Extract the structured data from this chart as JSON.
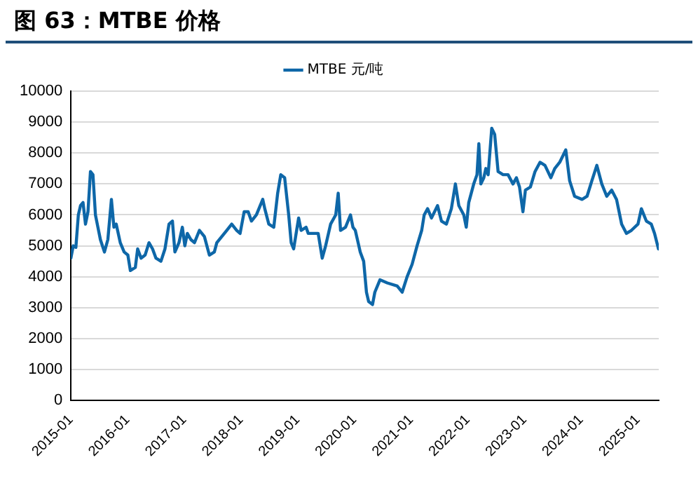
{
  "chart_data": {
    "type": "line",
    "title": "图 63：MTBE 价格",
    "xlim": [
      "2015-01-01",
      "2025-05-15"
    ],
    "xticks": [
      "2015-01",
      "2016-01",
      "2017-01",
      "2018-01",
      "2019-01",
      "2020-01",
      "2021-01",
      "2022-01",
      "2023-01",
      "2024-01",
      "2025-01"
    ],
    "ylim": [
      0,
      10000
    ],
    "yticks": [
      0,
      1000,
      2000,
      3000,
      4000,
      5000,
      6000,
      7000,
      8000,
      9000,
      10000
    ],
    "grid": "y",
    "legend": "top",
    "marker": "none",
    "line_style": "solid",
    "series": [
      {
        "name": "MTBE 元/吨",
        "color": "#0e67a8",
        "x": [
          "2015-01-01",
          "2015-01-16",
          "2015-02-02",
          "2015-02-18",
          "2015-03-04",
          "2015-03-20",
          "2015-04-05",
          "2015-04-21",
          "2015-05-07",
          "2015-05-23",
          "2015-06-08",
          "2015-06-24",
          "2015-07-10",
          "2015-08-05",
          "2015-08-27",
          "2015-09-19",
          "2015-10-05",
          "2015-10-20",
          "2015-11-15",
          "2015-12-10",
          "2016-01-03",
          "2016-01-19",
          "2016-02-20",
          "2016-03-06",
          "2016-03-28",
          "2016-04-23",
          "2016-05-18",
          "2016-06-10",
          "2016-07-02",
          "2016-08-03",
          "2016-08-29",
          "2016-09-24",
          "2016-10-16",
          "2016-11-01",
          "2016-11-27",
          "2016-12-19",
          "2017-01-04",
          "2017-01-20",
          "2017-02-12",
          "2017-03-07",
          "2017-04-08",
          "2017-05-10",
          "2017-06-11",
          "2017-07-13",
          "2017-07-29",
          "2017-08-30",
          "2017-10-01",
          "2017-11-02",
          "2017-12-04",
          "2017-12-26",
          "2018-01-21",
          "2018-02-16",
          "2018-03-09",
          "2018-04-10",
          "2018-05-21",
          "2018-06-03",
          "2018-06-29",
          "2018-07-31",
          "2018-08-25",
          "2018-09-14",
          "2018-10-09",
          "2018-11-04",
          "2018-11-20",
          "2018-12-06",
          "2018-12-22",
          "2019-01-07",
          "2019-01-23",
          "2019-02-24",
          "2019-03-10",
          "2019-04-11",
          "2019-05-13",
          "2019-06-08",
          "2019-06-30",
          "2019-08-01",
          "2019-09-03",
          "2019-09-19",
          "2019-10-04",
          "2019-11-05",
          "2019-12-07",
          "2019-12-23",
          "2020-01-07",
          "2020-02-08",
          "2020-03-01",
          "2020-03-19",
          "2020-04-02",
          "2020-04-27",
          "2020-05-12",
          "2020-06-14",
          "2020-07-31",
          "2020-10-03",
          "2020-11-04",
          "2020-12-06",
          "2021-01-07",
          "2021-02-08",
          "2021-03-10",
          "2021-03-26",
          "2021-04-17",
          "2021-05-12",
          "2021-06-20",
          "2021-07-15",
          "2021-08-16",
          "2021-09-17",
          "2021-10-13",
          "2021-11-04",
          "2021-12-06",
          "2021-12-22",
          "2022-01-07",
          "2022-02-08",
          "2022-03-01",
          "2022-03-13",
          "2022-03-26",
          "2022-04-14",
          "2022-04-27",
          "2022-05-12",
          "2022-06-04",
          "2022-06-23",
          "2022-07-15",
          "2022-08-16",
          "2022-09-17",
          "2022-10-19",
          "2022-11-10",
          "2022-11-30",
          "2022-12-22",
          "2023-01-07",
          "2023-02-08",
          "2023-03-10",
          "2023-04-11",
          "2023-05-13",
          "2023-06-20",
          "2023-07-15",
          "2023-08-16",
          "2023-09-24",
          "2023-10-19",
          "2023-11-20",
          "2024-01-07",
          "2024-02-08",
          "2024-03-10",
          "2024-04-11",
          "2024-05-13",
          "2024-06-14",
          "2024-07-16",
          "2024-08-16",
          "2024-09-18",
          "2024-10-19",
          "2024-11-20",
          "2025-01-01",
          "2025-01-23",
          "2025-02-24",
          "2025-03-28",
          "2025-04-18",
          "2025-05-13"
        ],
        "values": [
          4600,
          5000,
          4950,
          6000,
          6300,
          6400,
          5700,
          6100,
          7400,
          7300,
          6000,
          5600,
          5200,
          4800,
          5200,
          6500,
          5600,
          5700,
          5100,
          4800,
          4700,
          4200,
          4300,
          4900,
          4600,
          4700,
          5100,
          4900,
          4600,
          4500,
          4900,
          5700,
          5800,
          4800,
          5100,
          5600,
          5000,
          5400,
          5200,
          5100,
          5500,
          5300,
          4700,
          4800,
          5100,
          5300,
          5500,
          5700,
          5500,
          5400,
          6100,
          6100,
          5800,
          6000,
          6500,
          6200,
          5700,
          5600,
          6700,
          7300,
          7200,
          6000,
          5100,
          4900,
          5400,
          5900,
          5500,
          5600,
          5400,
          5400,
          5400,
          4600,
          5000,
          5700,
          6000,
          6700,
          5500,
          5600,
          6000,
          5600,
          5500,
          4800,
          4500,
          3500,
          3200,
          3100,
          3500,
          3900,
          3800,
          3700,
          3500,
          4000,
          4400,
          5000,
          5500,
          6000,
          6200,
          5900,
          6300,
          5800,
          5700,
          6200,
          7000,
          6300,
          6000,
          5600,
          6400,
          7000,
          7300,
          8300,
          7000,
          7200,
          7500,
          7300,
          8800,
          8600,
          7400,
          7300,
          7300,
          7000,
          7200,
          6900,
          6100,
          6800,
          6900,
          7400,
          7700,
          7600,
          7200,
          7500,
          7700,
          8100,
          7100,
          6600,
          6500,
          6600,
          7100,
          7600,
          7000,
          6600,
          6800,
          6500,
          5700,
          5400,
          5500,
          5700,
          6200,
          5800,
          5700,
          5400,
          4900
        ]
      }
    ]
  }
}
